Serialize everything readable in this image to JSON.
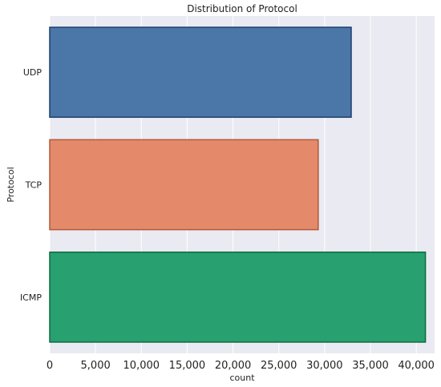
{
  "chart_data": {
    "type": "bar",
    "orientation": "horizontal",
    "title": "Distribution of Protocol",
    "xlabel": "count",
    "ylabel": "Protocol",
    "categories": [
      "UDP",
      "TCP",
      "ICMP"
    ],
    "values": [
      32900,
      29300,
      41000
    ],
    "colors": [
      "#4a76a8",
      "#e4896a",
      "#28a070"
    ],
    "edge_colors": [
      "#1f3f6a",
      "#b05a3a",
      "#0e6a40"
    ],
    "xlim": [
      0,
      42000
    ],
    "xticks": [
      0,
      5000,
      10000,
      15000,
      20000,
      25000,
      30000,
      35000,
      40000
    ],
    "xtick_labels": [
      "0",
      "5,000",
      "10,000",
      "15,000",
      "20,000",
      "25,000",
      "30,000",
      "35,000",
      "40,000"
    ],
    "grid": true,
    "background": "#eaeaf2"
  }
}
